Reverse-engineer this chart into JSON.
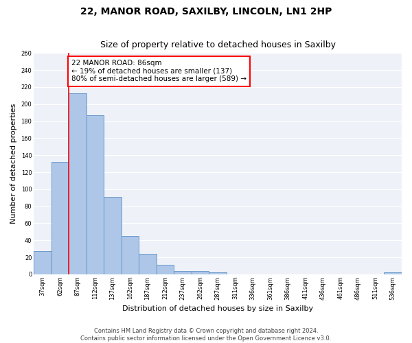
{
  "title1": "22, MANOR ROAD, SAXILBY, LINCOLN, LN1 2HP",
  "title2": "Size of property relative to detached houses in Saxilby",
  "xlabel": "Distribution of detached houses by size in Saxilby",
  "ylabel": "Number of detached properties",
  "footer1": "Contains HM Land Registry data © Crown copyright and database right 2024.",
  "footer2": "Contains public sector information licensed under the Open Government Licence v3.0.",
  "categories": [
    "37sqm",
    "62sqm",
    "87sqm",
    "112sqm",
    "137sqm",
    "162sqm",
    "187sqm",
    "212sqm",
    "237sqm",
    "262sqm",
    "287sqm",
    "311sqm",
    "336sqm",
    "361sqm",
    "386sqm",
    "411sqm",
    "436sqm",
    "461sqm",
    "486sqm",
    "511sqm",
    "536sqm"
  ],
  "values": [
    27,
    132,
    213,
    187,
    91,
    45,
    24,
    11,
    4,
    4,
    2,
    0,
    0,
    0,
    0,
    0,
    0,
    0,
    0,
    0,
    2
  ],
  "bar_color": "#aec6e8",
  "bar_edge_color": "#5a8fc4",
  "vline_x": 1.5,
  "annotation_text": "22 MANOR ROAD: 86sqm\n← 19% of detached houses are smaller (137)\n80% of semi-detached houses are larger (589) →",
  "annotation_box_color": "white",
  "annotation_box_edge_color": "red",
  "ylim": [
    0,
    260
  ],
  "yticks": [
    0,
    20,
    40,
    60,
    80,
    100,
    120,
    140,
    160,
    180,
    200,
    220,
    240,
    260
  ],
  "background_color": "#eef2f8",
  "grid_color": "white",
  "title1_fontsize": 10,
  "title2_fontsize": 9,
  "annotation_fontsize": 7.5,
  "ylabel_fontsize": 8,
  "xlabel_fontsize": 8,
  "footer_fontsize": 6,
  "tick_fontsize": 6
}
